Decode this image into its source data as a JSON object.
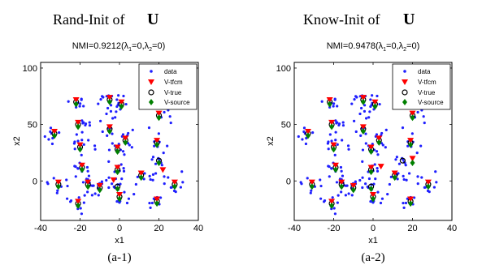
{
  "chart_data": [
    {
      "type": "scatter",
      "heading_text": "Rand-Init of",
      "heading_symbol": "U",
      "title_prefix": "NMI=0.9212(",
      "title_lambda1": "=0,",
      "title_lambda2": "=0)",
      "lambda_char": "λ",
      "sub1": "1",
      "sub2": "2",
      "xlabel": "x1",
      "ylabel": "x2",
      "xlim": [
        -40,
        40
      ],
      "ylim": [
        -35,
        105
      ],
      "xticks": [
        "-40",
        "-20",
        "0",
        "20",
        "40"
      ],
      "yticks": [
        "0",
        "50",
        "100"
      ],
      "caption": "(a-1)",
      "legend": [
        "data",
        "V-tfcm",
        "V-true",
        "V-source"
      ],
      "legend_placement": "top-right",
      "colors": {
        "data": "#1f1fff",
        "tfcm": "#ff0000",
        "true": "#000000",
        "source": "#008000"
      },
      "series": [
        {
          "name": "V-true",
          "points": [
            [
              -22,
              70
            ],
            [
              -5,
              72
            ],
            [
              1,
              68
            ],
            [
              20,
              58
            ],
            [
              -33,
              42
            ],
            [
              -21,
              50
            ],
            [
              -5,
              46
            ],
            [
              3,
              36
            ],
            [
              -20,
              30
            ],
            [
              -1,
              28
            ],
            [
              19,
              34
            ],
            [
              -19,
              12
            ],
            [
              -1,
              10
            ],
            [
              20,
              18
            ],
            [
              -31,
              -3
            ],
            [
              -16,
              -3
            ],
            [
              -10,
              -6
            ],
            [
              -1,
              -5
            ],
            [
              11,
              5
            ],
            [
              28,
              -3
            ],
            [
              -21,
              -20
            ],
            [
              0,
              -14
            ],
            [
              19,
              -18
            ]
          ]
        },
        {
          "name": "V-tfcm",
          "points": [
            [
              -22,
              72
            ],
            [
              -5,
              74
            ],
            [
              1,
              70
            ],
            [
              20,
              60
            ],
            [
              -33,
              44
            ],
            [
              -21,
              52
            ],
            [
              -5,
              48
            ],
            [
              3,
              38
            ],
            [
              -20,
              32
            ],
            [
              -1,
              30
            ],
            [
              19,
              36
            ],
            [
              -19,
              14
            ],
            [
              -1,
              12
            ],
            [
              22,
              10
            ],
            [
              -31,
              -1
            ],
            [
              -16,
              -1
            ],
            [
              -10,
              -4
            ],
            [
              -3,
              1
            ],
            [
              11,
              7
            ],
            [
              28,
              -1
            ],
            [
              -21,
              -18
            ],
            [
              0,
              -12
            ],
            [
              19,
              -16
            ]
          ]
        },
        {
          "name": "V-source",
          "points": [
            [
              -22,
              68
            ],
            [
              -5,
              70
            ],
            [
              1,
              66
            ],
            [
              20,
              56
            ],
            [
              -33,
              40
            ],
            [
              -21,
              48
            ],
            [
              -5,
              44
            ],
            [
              3,
              34
            ],
            [
              -20,
              28
            ],
            [
              -1,
              26
            ],
            [
              19,
              32
            ],
            [
              -19,
              10
            ],
            [
              -1,
              8
            ],
            [
              20,
              16
            ],
            [
              -31,
              -5
            ],
            [
              -16,
              -5
            ],
            [
              -10,
              -8
            ],
            [
              -1,
              -7
            ],
            [
              11,
              3
            ],
            [
              28,
              -5
            ],
            [
              -21,
              -22
            ],
            [
              0,
              -16
            ],
            [
              19,
              -20
            ]
          ]
        }
      ]
    },
    {
      "type": "scatter",
      "heading_text": "Know-Init of",
      "heading_symbol": "U",
      "title_prefix": "NMI=0.9478(",
      "title_lambda1": "=0,",
      "title_lambda2": "=0)",
      "lambda_char": "λ",
      "sub1": "1",
      "sub2": "2",
      "xlabel": "x1",
      "ylabel": "x2",
      "xlim": [
        -40,
        40
      ],
      "ylim": [
        -35,
        105
      ],
      "xticks": [
        "-40",
        "-20",
        "0",
        "20",
        "40"
      ],
      "yticks": [
        "0",
        "50",
        "100"
      ],
      "caption": "(a-2)",
      "legend": [
        "data",
        "V-tfcm",
        "V-true",
        "V-source"
      ],
      "legend_placement": "top-right",
      "colors": {
        "data": "#1f1fff",
        "tfcm": "#ff0000",
        "true": "#000000",
        "source": "#008000"
      },
      "series": [
        {
          "name": "V-true",
          "points": [
            [
              -22,
              70
            ],
            [
              -5,
              72
            ],
            [
              1,
              68
            ],
            [
              20,
              58
            ],
            [
              -33,
              42
            ],
            [
              -21,
              50
            ],
            [
              -5,
              46
            ],
            [
              3,
              36
            ],
            [
              -20,
              30
            ],
            [
              -1,
              28
            ],
            [
              19,
              34
            ],
            [
              -19,
              12
            ],
            [
              -1,
              10
            ],
            [
              15,
              18
            ],
            [
              -31,
              -3
            ],
            [
              -16,
              -3
            ],
            [
              -10,
              -6
            ],
            [
              -1,
              -5
            ],
            [
              11,
              5
            ],
            [
              28,
              -3
            ],
            [
              -21,
              -20
            ],
            [
              0,
              -14
            ],
            [
              19,
              -18
            ]
          ]
        },
        {
          "name": "V-tfcm",
          "points": [
            [
              -22,
              72
            ],
            [
              -5,
              74
            ],
            [
              1,
              70
            ],
            [
              20,
              60
            ],
            [
              -33,
              44
            ],
            [
              -21,
              52
            ],
            [
              -5,
              48
            ],
            [
              3,
              38
            ],
            [
              -20,
              32
            ],
            [
              -1,
              30
            ],
            [
              19,
              36
            ],
            [
              -19,
              14
            ],
            [
              -1,
              12
            ],
            [
              20,
              20
            ],
            [
              -31,
              -1
            ],
            [
              -16,
              -1
            ],
            [
              -10,
              -4
            ],
            [
              4,
              13
            ],
            [
              11,
              7
            ],
            [
              28,
              -1
            ],
            [
              -21,
              -18
            ],
            [
              0,
              -12
            ],
            [
              19,
              -16
            ]
          ]
        },
        {
          "name": "V-source",
          "points": [
            [
              -22,
              68
            ],
            [
              -5,
              70
            ],
            [
              1,
              66
            ],
            [
              20,
              56
            ],
            [
              -33,
              40
            ],
            [
              -21,
              48
            ],
            [
              -5,
              44
            ],
            [
              3,
              34
            ],
            [
              -20,
              28
            ],
            [
              -1,
              26
            ],
            [
              19,
              32
            ],
            [
              -19,
              10
            ],
            [
              -1,
              8
            ],
            [
              20,
              16
            ],
            [
              -31,
              -5
            ],
            [
              -16,
              -5
            ],
            [
              -10,
              -8
            ],
            [
              -1,
              -7
            ],
            [
              11,
              3
            ],
            [
              28,
              -5
            ],
            [
              -21,
              -22
            ],
            [
              0,
              -16
            ],
            [
              19,
              -20
            ]
          ]
        }
      ]
    }
  ]
}
